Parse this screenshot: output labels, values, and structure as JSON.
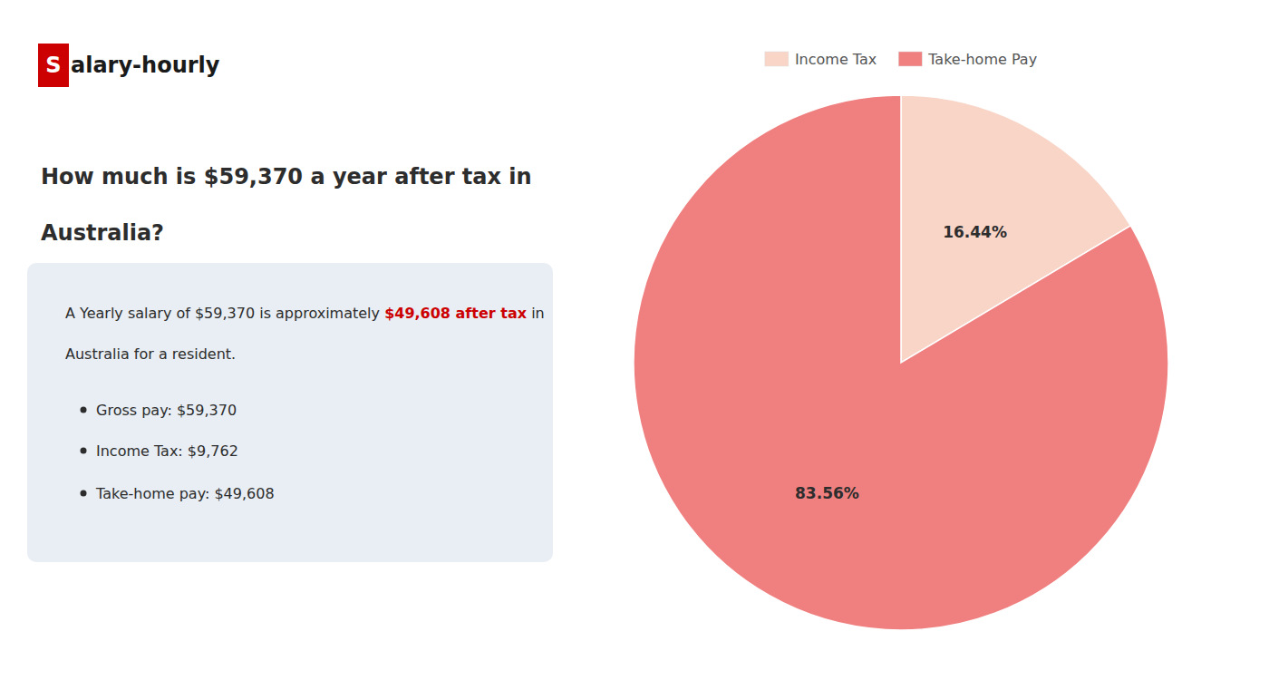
{
  "chart_data": {
    "type": "pie",
    "title": [
      "How much is $59,370 a year after tax in",
      "Australia?"
    ],
    "categories": [
      "Income Tax",
      "Take-home Pay"
    ],
    "values": [
      16.44,
      83.56
    ],
    "value_labels": [
      "16.44%",
      "83.56%"
    ],
    "colors": [
      "#f9d5c8",
      "#f08080"
    ],
    "data_labels": true,
    "legend": "top",
    "annotations": [
      [
        {
          "text": "S",
          "color": "#cc0000"
        },
        {
          "text": "alary-hourly"
        }
      ],
      [
        {
          "text": "A Yearly salary of $59,370 is approximately "
        },
        {
          "text": "$49,608 after tax",
          "color": "#cc0000"
        },
        {
          "text": " in"
        }
      ],
      [
        {
          "text": "Australia for a resident."
        }
      ],
      [
        {
          "text": "Gross pay: $59,370"
        }
      ],
      [
        {
          "text": "Income Tax: $9,762"
        }
      ],
      [
        {
          "text": "Take-home pay: $49,608"
        }
      ]
    ]
  }
}
